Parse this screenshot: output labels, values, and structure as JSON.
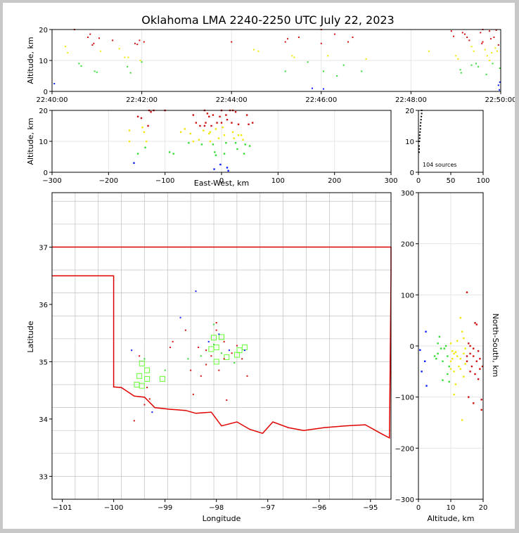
{
  "title": "Oklahoma LMA 2240-2250 UTC July 22, 2023",
  "source_count_label": "104 sources",
  "colors": {
    "blue": "#0a1eff",
    "green": "#33dd33",
    "yellow": "#f0e800",
    "red": "#d01010",
    "state_border": "#e00000",
    "county": "#c0c0c0",
    "station": "#66ff33",
    "grid": "#e6e6e6"
  },
  "chart_data": [
    {
      "id": "time-altitude",
      "type": "scatter",
      "xlabel": "",
      "ylabel": "Altitude, km",
      "xlim": [
        "22:40:00",
        "22:50:00"
      ],
      "xticks": [
        "22:40:00",
        "22:42:00",
        "22:44:00",
        "22:46:00",
        "22:48:00",
        "22:50:00"
      ],
      "ylim": [
        0,
        20
      ],
      "yticks": [
        "0",
        "10",
        "20"
      ],
      "grid": true,
      "points_time_min_alt_km": [
        [
          0.05,
          2.5
        ],
        [
          0.5,
          20
        ],
        [
          0.3,
          14.5
        ],
        [
          0.35,
          12.5
        ],
        [
          0.6,
          9
        ],
        [
          0.65,
          8.2
        ],
        [
          0.8,
          17.5
        ],
        [
          0.85,
          18.5
        ],
        [
          0.9,
          15
        ],
        [
          0.93,
          15.5
        ],
        [
          0.95,
          6.5
        ],
        [
          1.0,
          6.2
        ],
        [
          1.05,
          17.2
        ],
        [
          1.08,
          13
        ],
        [
          1.35,
          16.5
        ],
        [
          1.5,
          13.8
        ],
        [
          1.62,
          11
        ],
        [
          1.7,
          11
        ],
        [
          1.68,
          8
        ],
        [
          1.75,
          6
        ],
        [
          1.85,
          15.5
        ],
        [
          1.9,
          15.2
        ],
        [
          1.95,
          16.5
        ],
        [
          1.97,
          10
        ],
        [
          2.0,
          9.5
        ],
        [
          2.05,
          16
        ],
        [
          4.0,
          16
        ],
        [
          4.5,
          13.5
        ],
        [
          4.6,
          13
        ],
        [
          5.2,
          16
        ],
        [
          5.25,
          17
        ],
        [
          5.35,
          11.5
        ],
        [
          5.4,
          11
        ],
        [
          5.5,
          17.5
        ],
        [
          5.2,
          6.5
        ],
        [
          5.7,
          9.5
        ],
        [
          5.8,
          1
        ],
        [
          6.0,
          15.5
        ],
        [
          6.05,
          6.5
        ],
        [
          6.15,
          11.5
        ],
        [
          6.3,
          18.5
        ],
        [
          6.35,
          5
        ],
        [
          6.5,
          8.5
        ],
        [
          6.6,
          16
        ],
        [
          6.7,
          17.5
        ],
        [
          6.9,
          6.5
        ],
        [
          7.0,
          10.5
        ],
        [
          6.05,
          0.8
        ],
        [
          6.0,
          20
        ],
        [
          8.4,
          13
        ],
        [
          8.9,
          19.5
        ],
        [
          8.95,
          17.8
        ],
        [
          9.0,
          11.5
        ],
        [
          9.05,
          10.5
        ],
        [
          9.1,
          7
        ],
        [
          9.12,
          6
        ],
        [
          9.15,
          19
        ],
        [
          9.2,
          18.5
        ],
        [
          9.25,
          17.5
        ],
        [
          9.3,
          16.5
        ],
        [
          9.35,
          14.5
        ],
        [
          9.4,
          13
        ],
        [
          9.45,
          9
        ],
        [
          9.5,
          8
        ],
        [
          9.55,
          19
        ],
        [
          9.6,
          16
        ],
        [
          9.65,
          13.5
        ],
        [
          9.7,
          11.5
        ],
        [
          9.75,
          10
        ],
        [
          9.8,
          12.5
        ],
        [
          9.85,
          17.5
        ],
        [
          9.88,
          14
        ],
        [
          9.9,
          19.8
        ],
        [
          9.92,
          13
        ],
        [
          9.95,
          2
        ],
        [
          9.97,
          0.5
        ],
        [
          9.75,
          19.5
        ],
        [
          9.78,
          17
        ],
        [
          9.82,
          9
        ],
        [
          9.68,
          5.5
        ],
        [
          9.58,
          15.5
        ],
        [
          9.35,
          8.5
        ],
        [
          9.6,
          20
        ],
        [
          9.95,
          15
        ],
        [
          9.98,
          7.5
        ],
        [
          9.98,
          3
        ]
      ]
    },
    {
      "id": "ew-altitude",
      "type": "scatter",
      "xlabel": "East-West, km",
      "ylabel": "Altitude, km",
      "xlim": [
        -300,
        300
      ],
      "xticks": [
        "−300",
        "−200",
        "−100",
        "0",
        "100",
        "200",
        "300"
      ],
      "ylim": [
        0,
        20
      ],
      "yticks": [
        "0",
        "10",
        "20"
      ],
      "grid": true,
      "points_x_km_alt_km": [
        [
          -163,
          13.5
        ],
        [
          -163,
          10
        ],
        [
          -155,
          3
        ],
        [
          -148,
          18
        ],
        [
          -148,
          6
        ],
        [
          -142,
          17.5
        ],
        [
          -140,
          14.5
        ],
        [
          -137,
          13
        ],
        [
          -135,
          8
        ],
        [
          -133,
          10
        ],
        [
          -130,
          15
        ],
        [
          -128,
          20
        ],
        [
          -125,
          19.5
        ],
        [
          -100,
          20
        ],
        [
          -92,
          6.5
        ],
        [
          -85,
          6
        ],
        [
          -72,
          13
        ],
        [
          -65,
          14
        ],
        [
          -58,
          9.5
        ],
        [
          -55,
          12.5
        ],
        [
          -50,
          18.5
        ],
        [
          -45,
          16
        ],
        [
          -40,
          10.5
        ],
        [
          -38,
          15
        ],
        [
          -35,
          9
        ],
        [
          -32,
          13.5
        ],
        [
          -30,
          20
        ],
        [
          -28,
          16
        ],
        [
          -25,
          19
        ],
        [
          -22,
          18
        ],
        [
          -22,
          12.5
        ],
        [
          -20,
          10
        ],
        [
          -18,
          15
        ],
        [
          -15,
          18.5
        ],
        [
          -15,
          9
        ],
        [
          -13,
          1
        ],
        [
          -12,
          6.5
        ],
        [
          -10,
          14
        ],
        [
          -10,
          5.5
        ],
        [
          -8,
          16
        ],
        [
          -5,
          11
        ],
        [
          -3,
          18
        ],
        [
          -2,
          2.5
        ],
        [
          0,
          16
        ],
        [
          2,
          14.5
        ],
        [
          5,
          12
        ],
        [
          8,
          18.5
        ],
        [
          8,
          9.5
        ],
        [
          10,
          1.5
        ],
        [
          12,
          0.5
        ],
        [
          15,
          20
        ],
        [
          18,
          16
        ],
        [
          20,
          13
        ],
        [
          22,
          11
        ],
        [
          25,
          19.5
        ],
        [
          25,
          9.5
        ],
        [
          28,
          7.5
        ],
        [
          30,
          15.5
        ],
        [
          35,
          12
        ],
        [
          38,
          10.5
        ],
        [
          40,
          6
        ],
        [
          42,
          9
        ],
        [
          45,
          18.5
        ],
        [
          48,
          15.5
        ],
        [
          50,
          8.5
        ],
        [
          55,
          16
        ],
        [
          -120,
          20
        ],
        [
          -30,
          15
        ],
        [
          0,
          20
        ],
        [
          20,
          20
        ],
        [
          5,
          6
        ],
        [
          -50,
          10
        ],
        [
          -20,
          13
        ],
        [
          10,
          17
        ],
        [
          30,
          12
        ]
      ]
    },
    {
      "id": "altitude-histogram",
      "type": "scatter",
      "xlabel": "",
      "ylabel": "",
      "xlim": [
        0,
        100
      ],
      "xticks": [
        "0",
        "50",
        "100"
      ],
      "ylim": [
        0,
        20
      ],
      "yticks": [
        "0",
        "10",
        "20"
      ],
      "annotation": "104 sources",
      "points_count_alt_km": [
        [
          1,
          6.5
        ],
        [
          1,
          7.5
        ],
        [
          1,
          8.5
        ],
        [
          1.5,
          10
        ],
        [
          2,
          11
        ],
        [
          2,
          12
        ],
        [
          2.5,
          13
        ],
        [
          3,
          14
        ],
        [
          3,
          15
        ],
        [
          3.5,
          16
        ],
        [
          4,
          17
        ],
        [
          4.5,
          18
        ],
        [
          5,
          19
        ],
        [
          5,
          20
        ]
      ]
    },
    {
      "id": "plan-view",
      "type": "scatter",
      "xlabel": "Longitude",
      "ylabel": "Latitude",
      "xlim": [
        -101.2,
        -94.6
      ],
      "xticks": [
        "−101",
        "−100",
        "−99",
        "−98",
        "−97",
        "−96",
        "−95"
      ],
      "ylim": [
        32.6,
        37.95
      ],
      "yticks": [
        "33",
        "34",
        "35",
        "36",
        "37"
      ],
      "stations_lon_lat": [
        [
          -99.5,
          34.75
        ],
        [
          -99.45,
          34.97
        ],
        [
          -99.35,
          34.85
        ],
        [
          -99.35,
          34.7
        ],
        [
          -99.45,
          34.58
        ],
        [
          -99.55,
          34.6
        ],
        [
          -99.05,
          34.7
        ],
        [
          -98.05,
          35.42
        ],
        [
          -97.9,
          35.43
        ],
        [
          -98.0,
          35.25
        ],
        [
          -98.1,
          35.22
        ],
        [
          -98.0,
          35.0
        ],
        [
          -97.8,
          35.08
        ],
        [
          -97.6,
          35.12
        ],
        [
          -97.55,
          35.2
        ],
        [
          -97.45,
          35.25
        ]
      ],
      "points_lon_lat": [
        [
          -99.6,
          33.97
        ],
        [
          -99.65,
          35.2
        ],
        [
          -99.5,
          35.1
        ],
        [
          -99.4,
          35.05
        ],
        [
          -99.35,
          34.55
        ],
        [
          -99.3,
          34.35
        ],
        [
          -99.25,
          34.12
        ],
        [
          -99.4,
          34.25
        ],
        [
          -99.0,
          34.85
        ],
        [
          -98.9,
          35.25
        ],
        [
          -98.85,
          35.35
        ],
        [
          -98.7,
          35.77
        ],
        [
          -98.6,
          35.55
        ],
        [
          -98.55,
          35.05
        ],
        [
          -98.5,
          34.85
        ],
        [
          -98.45,
          34.43
        ],
        [
          -98.4,
          36.23
        ],
        [
          -98.35,
          35.25
        ],
        [
          -98.3,
          35.1
        ],
        [
          -98.3,
          34.75
        ],
        [
          -98.2,
          35.2
        ],
        [
          -98.15,
          35.35
        ],
        [
          -98.1,
          35.1
        ],
        [
          -98.05,
          35.65
        ],
        [
          -98.0,
          35.68
        ],
        [
          -98.0,
          35.55
        ],
        [
          -97.95,
          35.48
        ],
        [
          -97.95,
          34.85
        ],
        [
          -97.9,
          35.15
        ],
        [
          -97.85,
          35.05
        ],
        [
          -97.8,
          34.33
        ],
        [
          -97.75,
          35.2
        ],
        [
          -97.7,
          35.15
        ],
        [
          -97.65,
          34.98
        ],
        [
          -97.6,
          35.28
        ],
        [
          -97.5,
          35.05
        ],
        [
          -97.45,
          35.2
        ],
        [
          -97.4,
          34.75
        ],
        [
          -98.05,
          35.3
        ],
        [
          -97.85,
          35.35
        ],
        [
          -98.2,
          34.95
        ]
      ]
    },
    {
      "id": "altitude-ns",
      "type": "scatter",
      "xlabel": "Altitude, km",
      "ylabel": "North-South, km",
      "xlim": [
        0,
        20
      ],
      "xticks": [
        "0",
        "10",
        "20"
      ],
      "ylim": [
        -300,
        300
      ],
      "yticks": [
        "−300",
        "−200",
        "−100",
        "0",
        "100",
        "200",
        "300"
      ],
      "grid": true,
      "points_alt_km_y_km": [
        [
          0.5,
          -8
        ],
        [
          1,
          -50
        ],
        [
          2,
          -30
        ],
        [
          2.5,
          -78
        ],
        [
          2.3,
          28
        ],
        [
          5,
          -20
        ],
        [
          5.5,
          -25
        ],
        [
          6,
          -15
        ],
        [
          6,
          5
        ],
        [
          6.5,
          18
        ],
        [
          7,
          -5
        ],
        [
          7.5,
          -67
        ],
        [
          7.5,
          -30
        ],
        [
          8,
          -5
        ],
        [
          8.5,
          0
        ],
        [
          9,
          -20
        ],
        [
          9,
          -55
        ],
        [
          9.5,
          -40
        ],
        [
          9.5,
          -70
        ],
        [
          10,
          -45
        ],
        [
          10,
          -30
        ],
        [
          10,
          5
        ],
        [
          10.5,
          -10
        ],
        [
          10.5,
          -25
        ],
        [
          11,
          -50
        ],
        [
          11,
          -95
        ],
        [
          11.5,
          -12
        ],
        [
          11.5,
          -75
        ],
        [
          12,
          -20
        ],
        [
          12.5,
          -40
        ],
        [
          13,
          55
        ],
        [
          13,
          -45
        ],
        [
          13.5,
          -145
        ],
        [
          13.5,
          28
        ],
        [
          14,
          -15
        ],
        [
          14,
          -60
        ],
        [
          14.5,
          -5
        ],
        [
          14.5,
          -35
        ],
        [
          15,
          105
        ],
        [
          15,
          -30
        ],
        [
          15,
          -20
        ],
        [
          15.5,
          -100
        ],
        [
          16,
          -15
        ],
        [
          16,
          -50
        ],
        [
          16.5,
          -40
        ],
        [
          17,
          -112
        ],
        [
          17,
          -20
        ],
        [
          17.5,
          45
        ],
        [
          17.5,
          -55
        ],
        [
          18,
          -30
        ],
        [
          18,
          42
        ],
        [
          18.5,
          -65
        ],
        [
          19,
          -25
        ],
        [
          19,
          -45
        ],
        [
          19.5,
          -105
        ],
        [
          19.5,
          -125
        ],
        [
          19.8,
          -40
        ],
        [
          12,
          10
        ],
        [
          13,
          -25
        ],
        [
          16,
          0
        ],
        [
          17,
          -5
        ],
        [
          18.5,
          -10
        ],
        [
          14,
          15
        ],
        [
          15.5,
          5
        ],
        [
          11,
          -15
        ]
      ]
    }
  ]
}
